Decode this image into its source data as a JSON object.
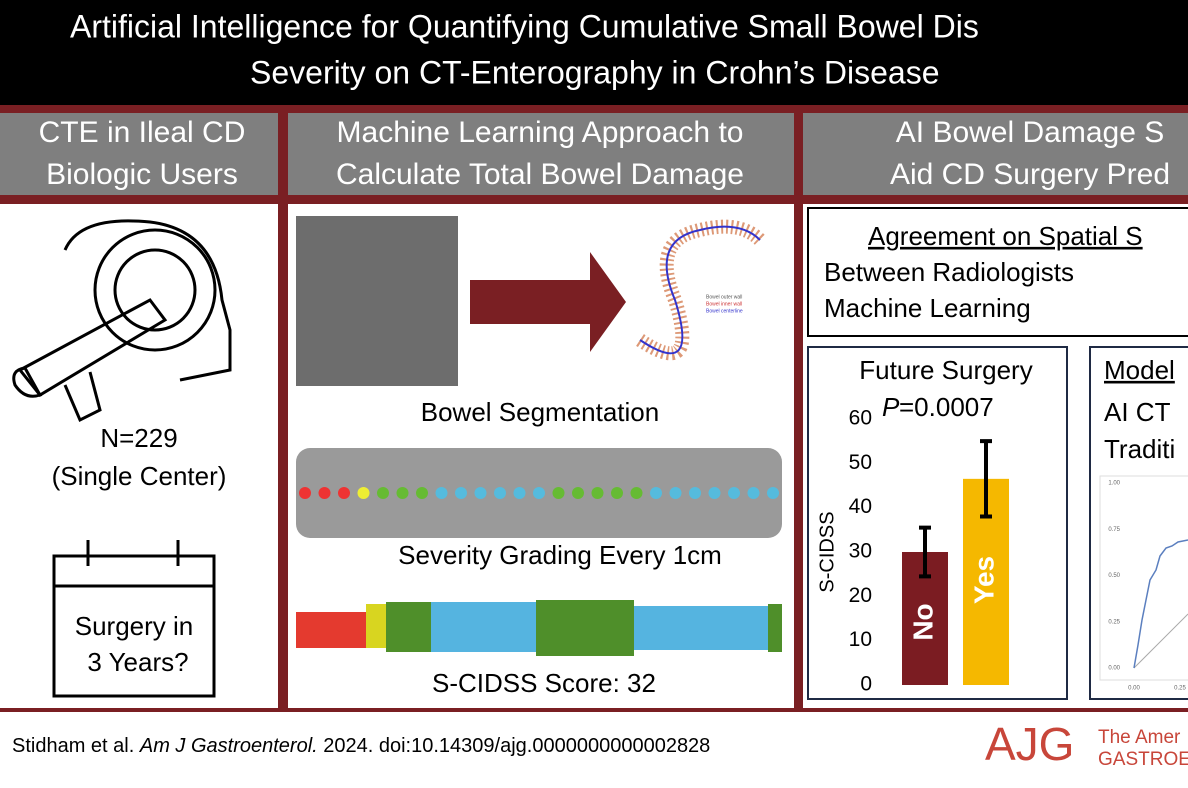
{
  "header": {
    "title_line1": "Artificial Intelligence for Quantifying Cumulative Small Bowel Dis",
    "title_line2": "Severity on CT-Enterography in Crohn’s Disease"
  },
  "panels": [
    {
      "heading": [
        "CTE in Ileal CD",
        "Biologic Users"
      ],
      "cohort": [
        "N=229",
        "(Single Center)"
      ],
      "question": [
        "Surgery in",
        "3 Years?"
      ]
    },
    {
      "heading": [
        "Machine Learning Approach to",
        "Calculate Total Bowel Damage"
      ],
      "steps": [
        "Bowel Segmentation",
        "Severity Grading Every 1cm",
        "S-CIDSS Score: 32"
      ],
      "legend": [
        "Bowel outer wall",
        "Bowel inner wall",
        "Bowel centerline"
      ]
    },
    {
      "heading": [
        "AI Bowel Damage S",
        "Aid CD Surgery Pred"
      ],
      "agreement": {
        "title": "Agreement on Spatial S",
        "lines": [
          "Between Radiologists",
          "Machine Learning"
        ]
      },
      "bar_chart": {
        "type": "bar",
        "title": "Future Surgery",
        "p_label": "P",
        "p_value": "=0.0007",
        "y_label": "S-CIDSS",
        "ylim": [
          0,
          60
        ],
        "yticks": [
          0,
          10,
          20,
          30,
          40,
          50,
          60
        ],
        "categories": [
          "No",
          "Yes"
        ],
        "colors": [
          "#7b1c22",
          "#f5b800"
        ],
        "values": [
          30,
          46.5
        ],
        "errors": [
          5.5,
          8.5
        ]
      },
      "model": {
        "title": "Model",
        "lines": [
          "AI CT",
          "Traditi"
        ],
        "roc_ylim": [
          0,
          1
        ],
        "roc_yticks": [
          {
            "value": 1,
            "label": "1.00"
          },
          {
            "value": 0.75,
            "label": "0.75"
          },
          {
            "value": 0.5,
            "label": "0.50"
          },
          {
            "value": 0.25,
            "label": "0.25"
          },
          {
            "value": 0,
            "label": "0.00"
          }
        ],
        "roc_xticks": [
          {
            "value": 0,
            "label": "0.00"
          },
          {
            "value": 0.25,
            "label": "0.25"
          }
        ]
      }
    }
  ],
  "citation": {
    "authors": "Stidham et al.",
    "journal": "Am J Gastroenterol.",
    "details": "2024. doi:10.14309/ajg.0000000000002828"
  },
  "logo": {
    "mark": "AJG",
    "lines": [
      "The Amer",
      "GASTROE"
    ]
  }
}
